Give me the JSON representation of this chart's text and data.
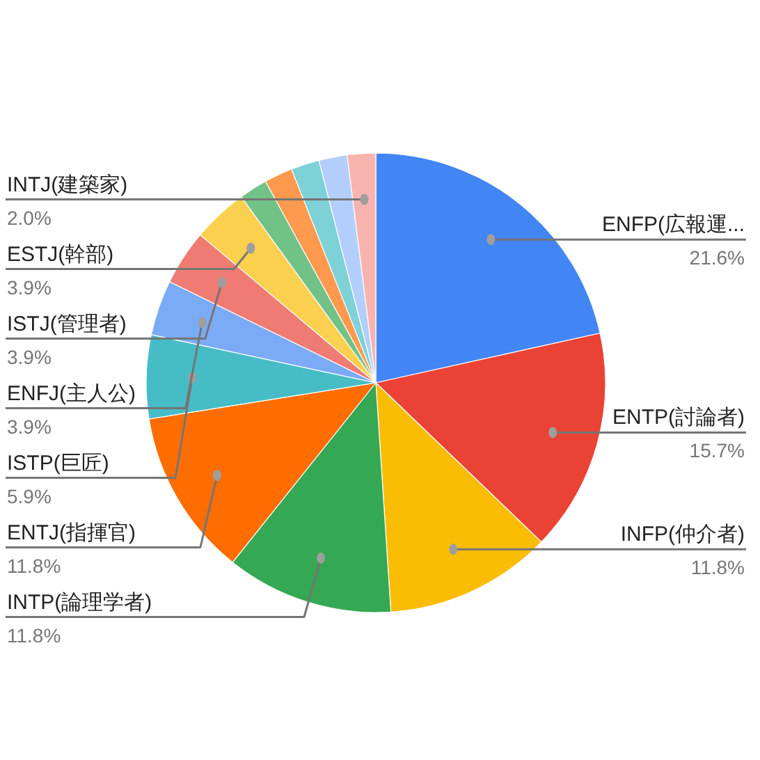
{
  "chart_data": {
    "type": "pie",
    "value_labels": [
      "21.6%",
      "15.7%",
      "11.8%",
      "11.8%",
      "11.8%",
      "5.9%",
      "3.9%",
      "3.9%",
      "3.9%",
      null,
      null,
      null,
      null,
      "2.0%"
    ],
    "categories": [
      "ENFP(広報運...",
      "ENTP(討論者)",
      "INFP(仲介者)",
      "INTP(論理学者)",
      "ENTJ(指揮官)",
      "ISTP(巨匠)",
      "ENFJ(主人公)",
      "ISTJ(管理者)",
      "ESTJ(幹部)",
      null,
      null,
      null,
      null,
      "INTJ(建築家)"
    ],
    "values": [
      21.6,
      15.7,
      11.8,
      11.8,
      11.8,
      5.9,
      3.9,
      3.9,
      3.9,
      2.0,
      2.0,
      2.0,
      2.0,
      2.0
    ],
    "colors": [
      "#4285f4",
      "#ea4335",
      "#fbbc04",
      "#34a853",
      "#ff6d01",
      "#46bdc6",
      "#7baaf7",
      "#f07b72",
      "#fcd04f",
      "#71c287",
      "#ff994d",
      "#7ed1d7",
      "#b3cefb",
      "#f7b4ae"
    ]
  }
}
